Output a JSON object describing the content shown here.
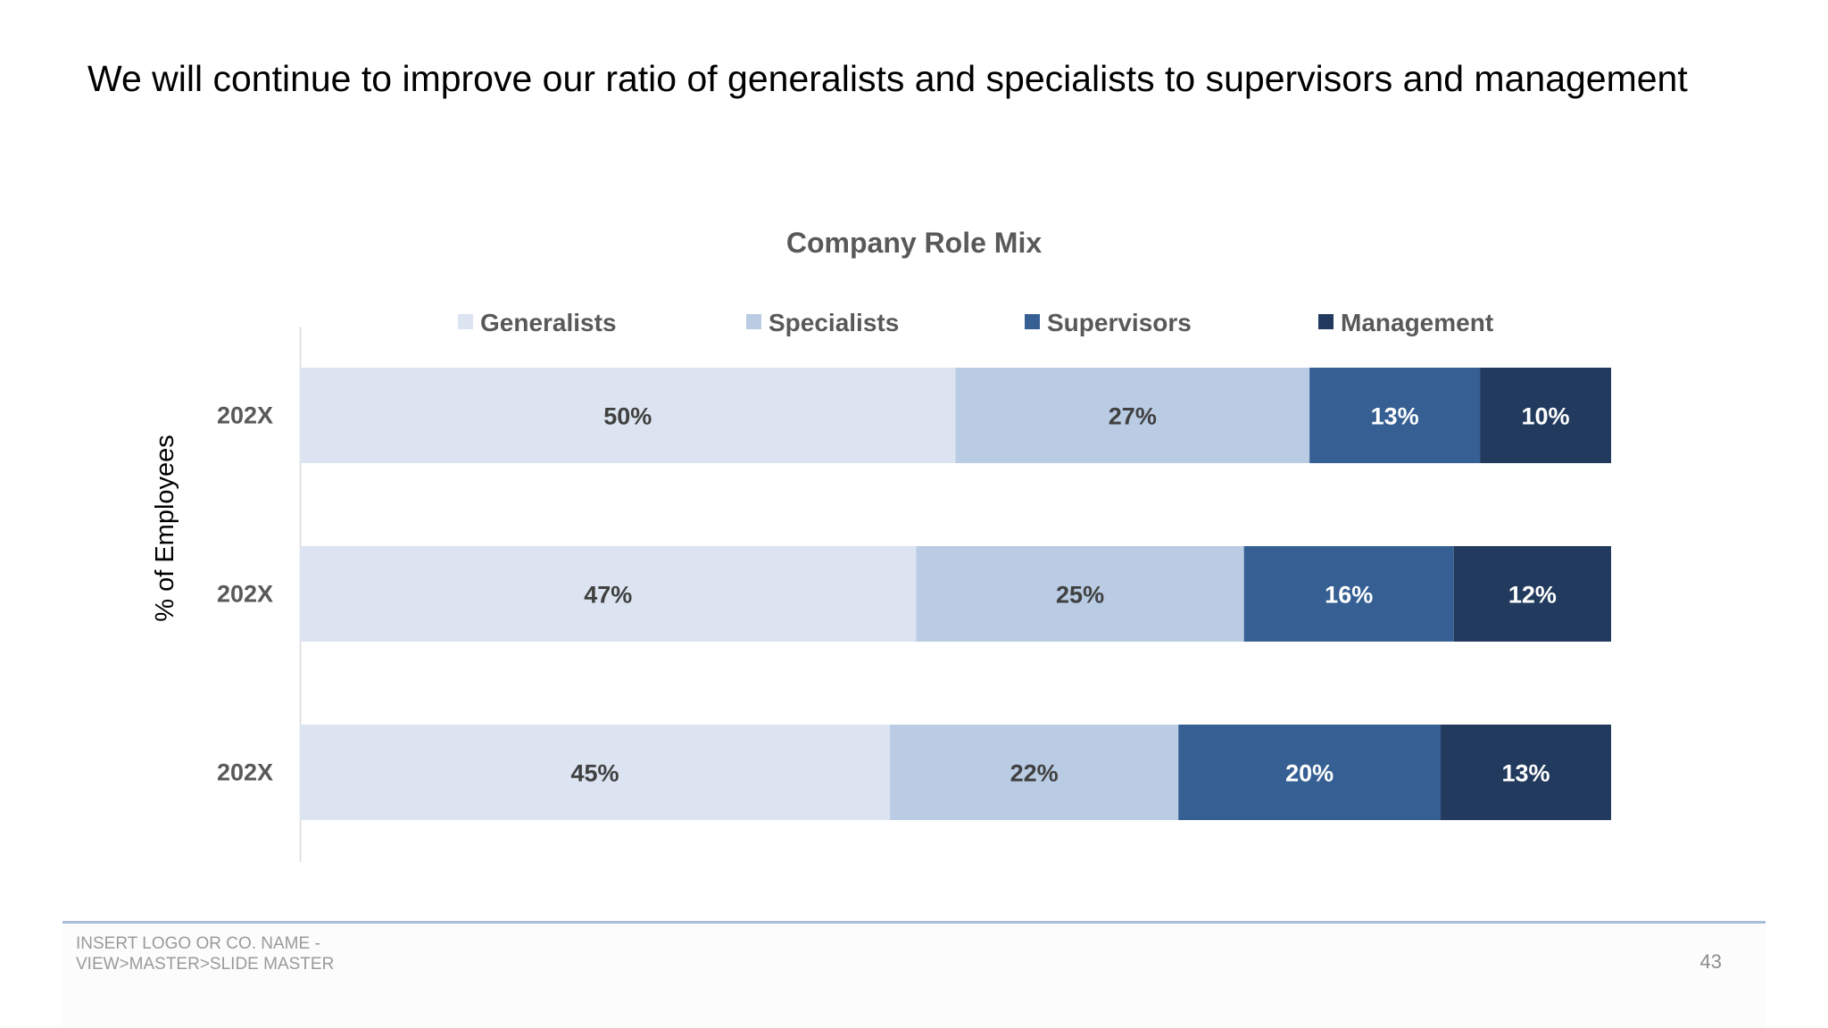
{
  "slide": {
    "title": "We will continue to improve our ratio of generalists and specialists to supervisors and management",
    "footer_line1": "INSERT LOGO OR CO. NAME -",
    "footer_line2": "VIEW>MASTER>SLIDE MASTER",
    "page_number": "43"
  },
  "chart_data": {
    "type": "bar",
    "orientation": "horizontal",
    "stacking": "percent",
    "title": "Company Role Mix",
    "ylabel": "% of Employees",
    "xlabel": "",
    "categories": [
      "202X",
      "202X",
      "202X"
    ],
    "series": [
      {
        "name": "Generalists",
        "values": [
          50,
          47,
          45
        ],
        "labels": [
          "50%",
          "47%",
          "45%"
        ],
        "color": "#dce4f1",
        "label_color": "#404040"
      },
      {
        "name": "Specialists",
        "values": [
          27,
          25,
          22
        ],
        "labels": [
          "27%",
          "25%",
          "22%"
        ],
        "color": "#b9cce4",
        "label_color": "#404040"
      },
      {
        "name": "Supervisors",
        "values": [
          13,
          16,
          20
        ],
        "labels": [
          "13%",
          "16%",
          "20%"
        ],
        "color": "#365f93",
        "label_color": "#ffffff"
      },
      {
        "name": "Management",
        "values": [
          10,
          12,
          13
        ],
        "labels": [
          "10%",
          "12%",
          "13%"
        ],
        "color": "#223a5e",
        "label_color": "#ffffff"
      }
    ],
    "legend_position": "top",
    "grid": false,
    "xlim": [
      0,
      100
    ]
  }
}
